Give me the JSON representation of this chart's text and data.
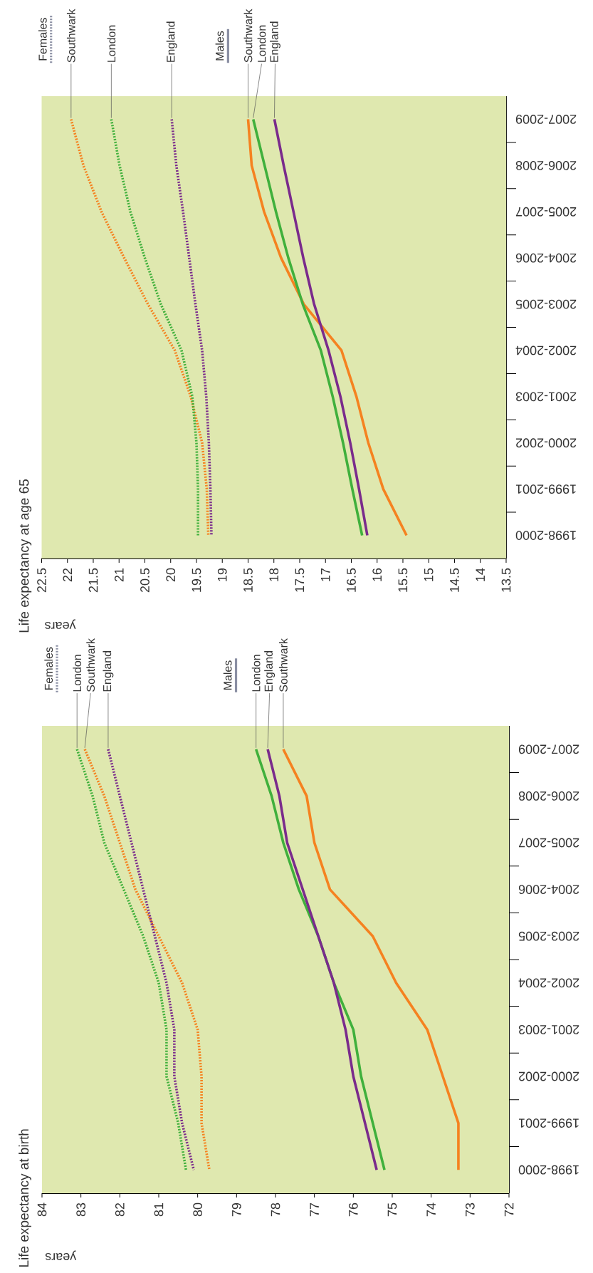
{
  "chart_data": [
    {
      "type": "line",
      "orientation": "horizontal",
      "title": "Life expectancy at birth",
      "xlabel": "years",
      "categories": [
        "2007-2009",
        "2006-2008",
        "2005-2007",
        "2004-2006",
        "2003-2005",
        "2002-2004",
        "2001-2003",
        "2000-2002",
        "1999-2001",
        "1998-2000"
      ],
      "xlim": [
        84,
        72
      ],
      "xticks": [
        84,
        83,
        82,
        81,
        80,
        79,
        78,
        77,
        76,
        75,
        74,
        73,
        72
      ],
      "annotations": [
        "Females",
        "Males"
      ],
      "series": [
        {
          "name": "Southwark",
          "color": "#f58220",
          "line_style": "dotted",
          "values": [
            82.9,
            82.4,
            82.0,
            81.6,
            81.0,
            80.4,
            80.0,
            79.9,
            79.9,
            79.7
          ]
        },
        {
          "name": "London",
          "color": "#40b03c",
          "line_style": "dotted",
          "values": [
            83.1,
            82.7,
            82.4,
            81.9,
            81.4,
            81.0,
            80.8,
            80.8,
            80.5,
            80.3
          ]
        },
        {
          "name": "England",
          "color": "#7a2b8c",
          "line_style": "dotted",
          "values": [
            82.3,
            82.0,
            81.7,
            81.4,
            81.1,
            80.8,
            80.6,
            80.6,
            80.4,
            80.1
          ]
        },
        {
          "name": "Southwark",
          "color": "#f58220",
          "line_style": "solid",
          "values": [
            77.8,
            77.2,
            77.0,
            76.6,
            75.5,
            74.9,
            74.1,
            73.7,
            73.3,
            73.3
          ]
        },
        {
          "name": "London",
          "color": "#40b03c",
          "line_style": "solid",
          "values": [
            78.5,
            78.1,
            77.8,
            77.4,
            76.9,
            76.5,
            76.0,
            75.8,
            75.5,
            75.2
          ]
        },
        {
          "name": "England",
          "color": "#7a2b8c",
          "line_style": "solid",
          "values": [
            78.2,
            77.9,
            77.7,
            77.3,
            76.9,
            76.5,
            76.2,
            76.0,
            75.7,
            75.4
          ]
        }
      ]
    },
    {
      "type": "line",
      "orientation": "horizontal",
      "title": "Life expectancy at age 65",
      "xlabel": "years",
      "categories": [
        "2007-2009",
        "2006-2008",
        "2005-2007",
        "2004-2006",
        "2003-2005",
        "2002-2004",
        "2001-2003",
        "2000-2002",
        "1999-2001",
        "1998-2000"
      ],
      "xlim": [
        22.5,
        13.5
      ],
      "xticks": [
        22.5,
        22,
        21.5,
        21,
        20.5,
        20,
        19.5,
        19,
        18.5,
        18,
        17.5,
        17,
        16.5,
        16,
        15.5,
        15,
        14.5,
        14,
        13.5
      ],
      "annotations": [
        "Females",
        "Males"
      ],
      "series": [
        {
          "name": "Southwark",
          "color": "#f58220",
          "line_style": "dotted",
          "values": [
            21.93,
            21.69,
            21.34,
            20.9,
            20.44,
            19.92,
            19.61,
            19.39,
            19.3,
            19.27
          ]
        },
        {
          "name": "London",
          "color": "#40b03c",
          "line_style": "dotted",
          "values": [
            21.15,
            20.99,
            20.78,
            20.5,
            20.19,
            19.79,
            19.58,
            19.5,
            19.47,
            19.47
          ]
        },
        {
          "name": "England",
          "color": "#7a2b8c",
          "line_style": "dotted",
          "values": [
            19.98,
            19.89,
            19.76,
            19.64,
            19.52,
            19.39,
            19.31,
            19.26,
            19.23,
            19.21
          ]
        },
        {
          "name": "Southwark",
          "color": "#f58220",
          "line_style": "solid",
          "values": [
            18.5,
            18.43,
            18.19,
            17.86,
            17.42,
            16.69,
            16.4,
            16.17,
            15.88,
            15.43
          ]
        },
        {
          "name": "London",
          "color": "#40b03c",
          "line_style": "solid",
          "values": [
            18.4,
            18.18,
            17.96,
            17.72,
            17.44,
            17.09,
            16.86,
            16.66,
            16.48,
            16.29
          ]
        },
        {
          "name": "England",
          "color": "#7a2b8c",
          "line_style": "solid",
          "values": [
            17.99,
            17.81,
            17.62,
            17.43,
            17.22,
            16.94,
            16.71,
            16.52,
            16.35,
            16.19
          ]
        }
      ]
    }
  ]
}
